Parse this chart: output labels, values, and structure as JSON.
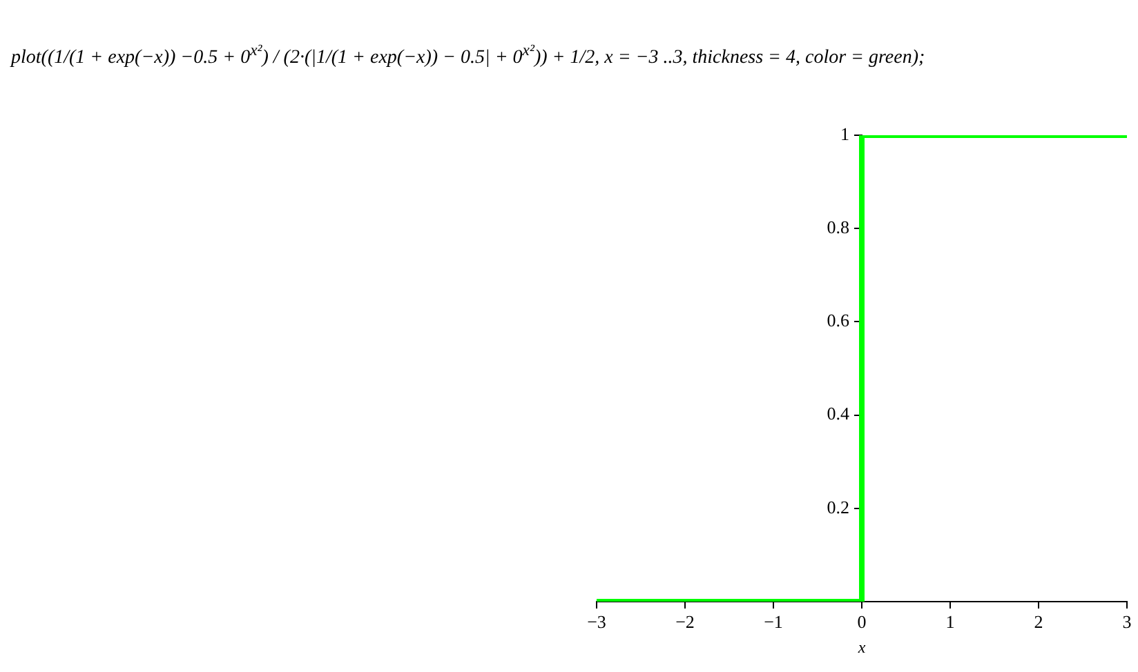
{
  "chart_data": {
    "type": "line",
    "annotations": [
      "plot((1/(1 + exp(−x)) −0.5 + 0$^{x²}$) / (2·(|1/(1 + exp(−x)) − 0.5| + 0$^{x²}$)) + 1/2, x = −3 ..3, thickness = 4, color = green);"
    ],
    "xlabel": "x",
    "x": [
      -3,
      0,
      0,
      3
    ],
    "series": [
      {
        "color": "#00ff00",
        "values": [
          0,
          0,
          1,
          1
        ]
      }
    ],
    "xlim": [
      -3,
      3
    ],
    "xticks": [
      -3,
      -2,
      -1,
      0,
      1,
      2,
      3
    ],
    "ylim": [
      0,
      1
    ],
    "yticks": [
      0.2,
      0.4,
      0.6,
      0.8,
      1
    ],
    "grid": false,
    "legend": false,
    "marker": "none",
    "line_style": "solid"
  }
}
